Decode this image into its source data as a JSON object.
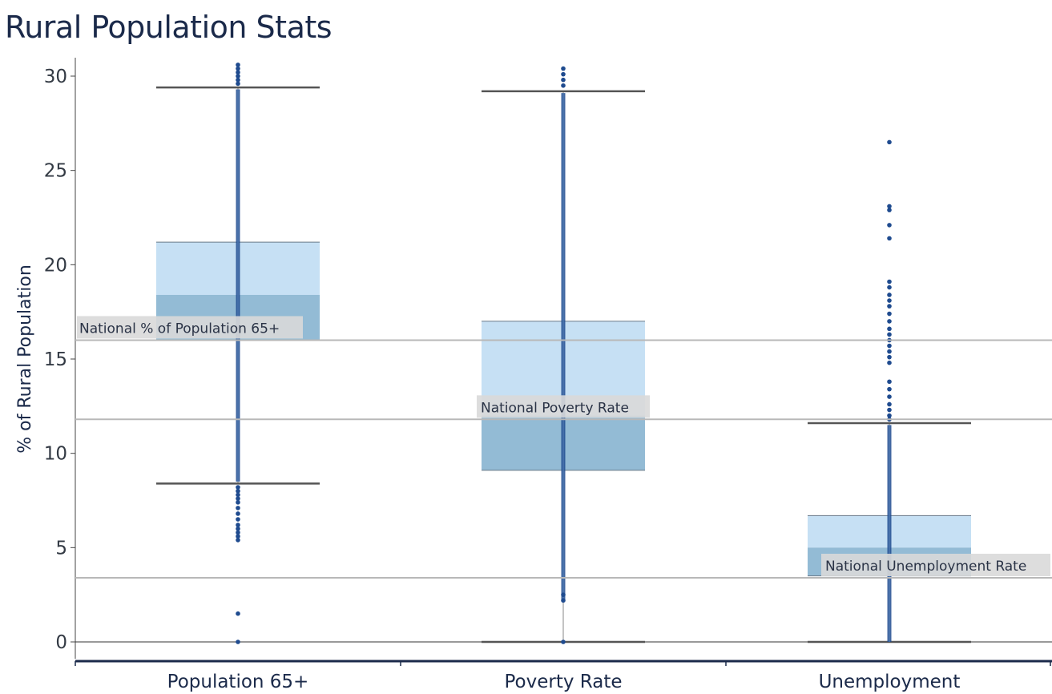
{
  "title": "Rural Population Stats",
  "chart_data": {
    "type": "box",
    "title": "Rural Population Stats",
    "xlabel": "",
    "ylabel": "% of Rural Population",
    "ylim": [
      -0.8,
      30.6
    ],
    "yticks": [
      0,
      5,
      10,
      15,
      20,
      25,
      30
    ],
    "grid": false,
    "categories": [
      "Population 65+",
      "Poverty Rate",
      "Unemployment"
    ],
    "boxes": [
      {
        "category": "Population 65+",
        "min": 8.4,
        "q1": 16.0,
        "median": 18.4,
        "q3": 21.2,
        "max": 29.4,
        "outliers_low": [
          8.2,
          8.0,
          7.8,
          7.6,
          7.4,
          7.1,
          6.8,
          6.5,
          6.2,
          6.0,
          5.8,
          5.6,
          5.4,
          1.5,
          0.0
        ],
        "outliers_high": [
          29.6,
          29.8,
          30.0,
          30.2,
          30.4,
          30.6
        ],
        "dense_range": [
          8.5,
          29.3
        ]
      },
      {
        "category": "Poverty Rate",
        "min": 0.0,
        "q1": 9.1,
        "median": 12.0,
        "q3": 17.0,
        "max": 29.2,
        "outliers_low": [],
        "outliers_high": [
          29.5,
          29.8,
          30.1,
          30.4
        ],
        "dense_range": [
          2.2,
          29.1
        ],
        "extra_points": [
          0.0,
          2.2,
          2.5
        ]
      },
      {
        "category": "Unemployment",
        "min": 0.0,
        "q1": 3.5,
        "median": 5.0,
        "q3": 6.7,
        "max": 11.6,
        "outliers_low": [],
        "outliers_high": [
          11.8,
          12.0,
          12.3,
          12.6,
          13.0,
          13.4,
          13.8,
          14.8,
          15.1,
          15.4,
          15.7,
          16.0,
          16.3,
          16.6,
          17.0,
          17.4,
          17.8,
          18.1,
          18.4,
          18.8,
          19.1,
          21.4,
          22.1,
          22.9,
          23.1,
          26.5
        ],
        "dense_range": [
          0.0,
          11.5
        ]
      }
    ],
    "reference_lines": [
      {
        "label": "National % of Population 65+",
        "value": 16.0
      },
      {
        "label": "National Poverty Rate",
        "value": 11.8
      },
      {
        "label": "National Unemployment Rate",
        "value": 3.4
      }
    ],
    "colors": {
      "box_upper": "#c6e0f4",
      "box_lower": "#93bbd5",
      "whisker": "#555555",
      "point": "#1f4b8f",
      "reference_line": "#b8b8b8",
      "reference_label_bg": "#d9d9d9",
      "axis": "#1b2a4a"
    }
  }
}
